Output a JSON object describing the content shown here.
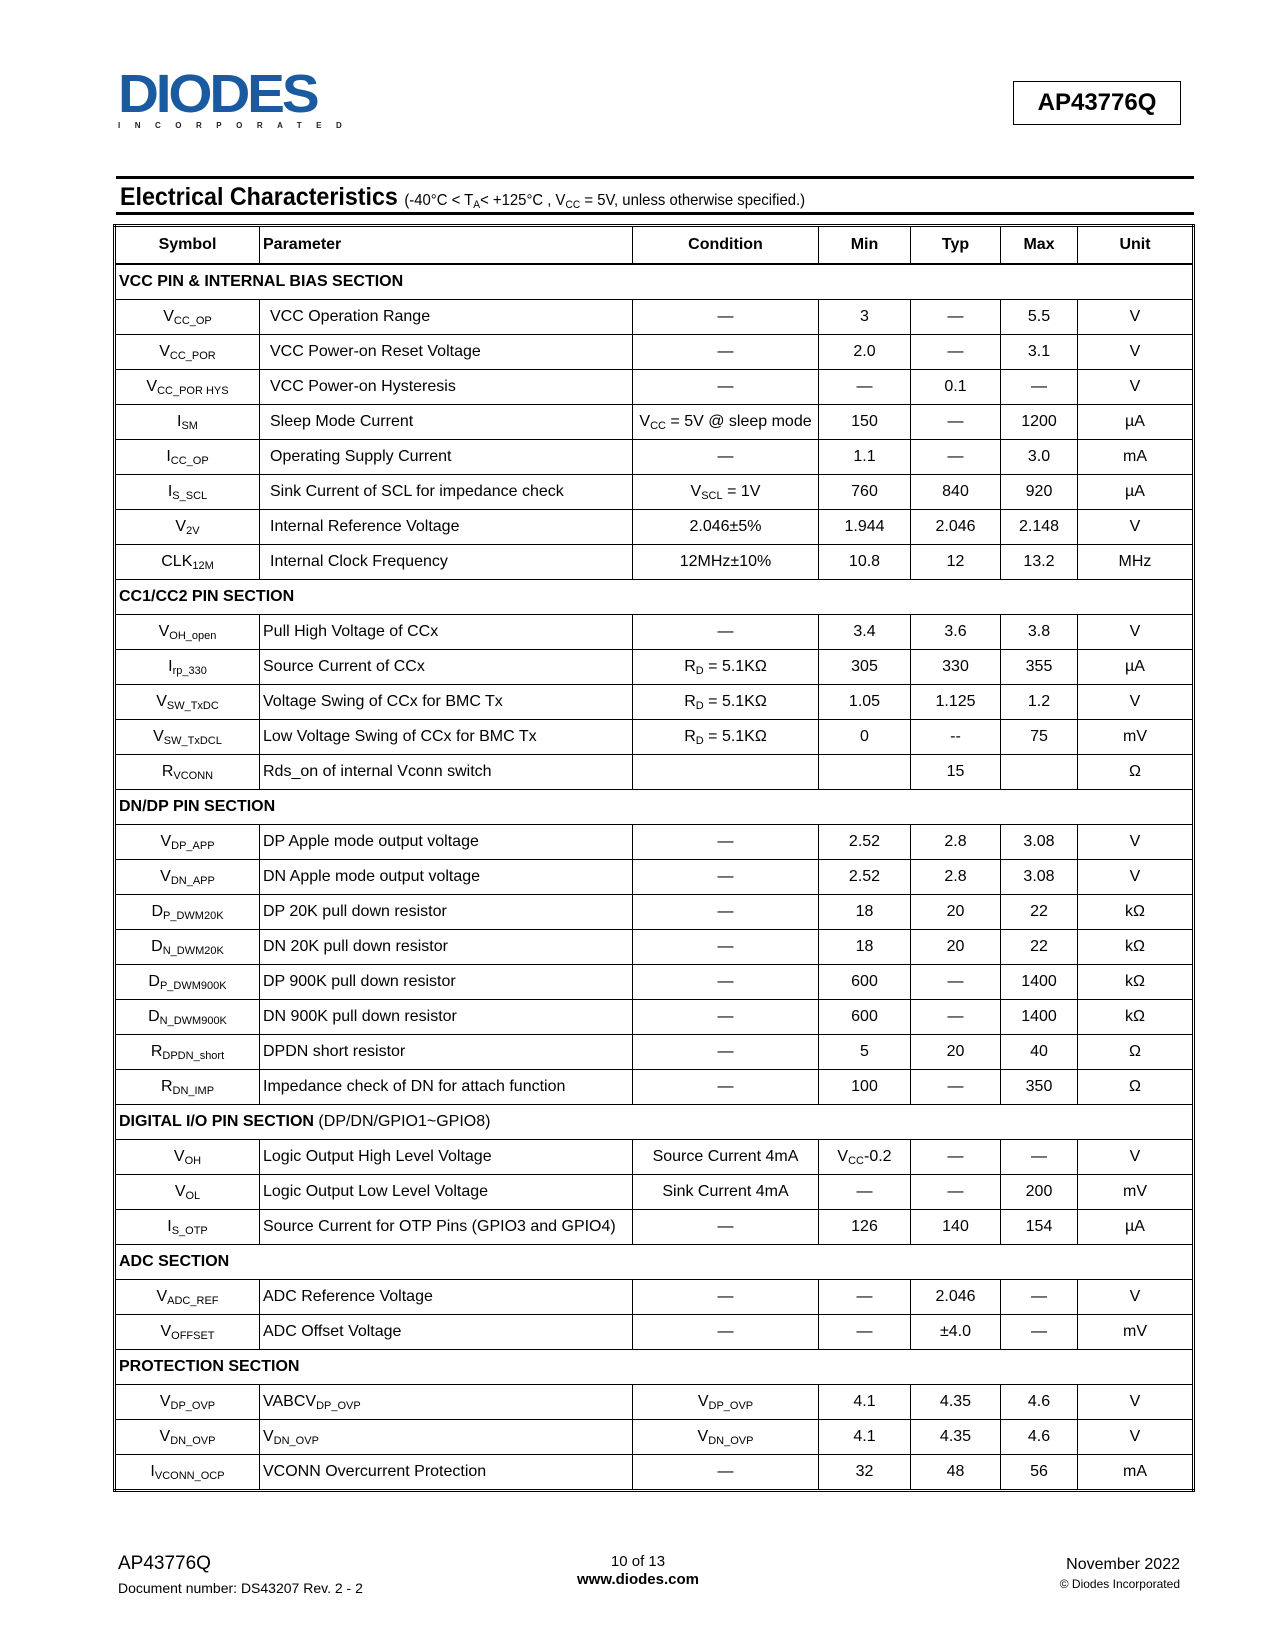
{
  "header": {
    "logo_text": "DIODES",
    "logo_sub": "INCORPORATED",
    "part_number": "AP43776Q"
  },
  "title": {
    "main": "Electrical Characteristics",
    "condition_pre": "(-40°C < T",
    "condition_sub1": "A",
    "condition_mid": "< +125°C , V",
    "condition_sub2": "CC",
    "condition_post": " = 5V, unless otherwise specified.)"
  },
  "table": {
    "columns": [
      "Symbol",
      "Parameter",
      "Condition",
      "Min",
      "Typ",
      "Max",
      "Unit"
    ],
    "sections": [
      {
        "name": "VCC PIN & INTERNAL BIAS SECTION",
        "rows": [
          [
            {
              "b": "V",
              "s": "CC_OP"
            },
            "VCC Operation Range",
            "—",
            "3",
            "—",
            "5.5",
            "V"
          ],
          [
            {
              "b": "V",
              "s": "CC_POR"
            },
            "VCC Power-on Reset Voltage",
            "—",
            "2.0",
            "—",
            "3.1",
            "V"
          ],
          [
            {
              "b": "V",
              "s": "CC_POR HYS"
            },
            "VCC Power-on Hysteresis",
            "—",
            "—",
            "0.1",
            "—",
            "V"
          ],
          [
            {
              "b": "I",
              "s": "SM"
            },
            "Sleep Mode Current",
            {
              "b": "V",
              "s": "CC",
              "a": " = 5V @ sleep mode"
            },
            "150",
            "—",
            "1200",
            "µA"
          ],
          [
            {
              "b": "I",
              "s": "CC_OP"
            },
            "Operating Supply Current",
            "—",
            "1.1",
            "—",
            "3.0",
            "mA"
          ],
          [
            {
              "b": "I",
              "s": "S_SCL"
            },
            "Sink Current of SCL for impedance check",
            {
              "b": "V",
              "s": "SCL",
              "a": " = 1V"
            },
            "760",
            "840",
            "920",
            "µA"
          ],
          [
            {
              "b": "V",
              "s": "2V"
            },
            "Internal Reference Voltage",
            "2.046±5%",
            "1.944",
            "2.046",
            "2.148",
            "V"
          ],
          [
            {
              "b": "CLK",
              "s": "12M"
            },
            "Internal Clock Frequency",
            "12MHz±10%",
            "10.8",
            "12",
            "13.2",
            "MHz"
          ]
        ]
      },
      {
        "name": "CC1/CC2 PIN SECTION",
        "rows": [
          [
            {
              "b": "V",
              "s": "OH_open"
            },
            "Pull High Voltage of CCx",
            "—",
            "3.4",
            "3.6",
            "3.8",
            "V"
          ],
          [
            {
              "b": "I",
              "s": "rp_330"
            },
            "Source Current of CCx",
            {
              "b": "R",
              "s": "D",
              "a": " = 5.1KΩ"
            },
            "305",
            "330",
            "355",
            "µA"
          ],
          [
            {
              "b": "V",
              "s": "SW_TxDC"
            },
            "Voltage Swing of CCx for BMC Tx",
            {
              "b": "R",
              "s": "D",
              "a": " = 5.1KΩ"
            },
            "1.05",
            "1.125",
            "1.2",
            "V"
          ],
          [
            {
              "b": "V",
              "s": "SW_TxDCL"
            },
            "Low Voltage Swing of CCx for BMC Tx",
            {
              "b": "R",
              "s": "D",
              "a": " = 5.1KΩ"
            },
            "0",
            "--",
            "75",
            "mV"
          ],
          [
            {
              "b": "R",
              "s": "VCONN"
            },
            "Rds_on of internal Vconn switch",
            "",
            "",
            "15",
            "",
            "Ω"
          ]
        ]
      },
      {
        "name": "DN/DP PIN SECTION",
        "rows": [
          [
            {
              "b": "V",
              "s": "DP_APP"
            },
            "DP Apple mode output voltage",
            "—",
            "2.52",
            "2.8",
            "3.08",
            "V"
          ],
          [
            {
              "b": "V",
              "s": "DN_APP"
            },
            "DN Apple mode output voltage",
            "—",
            "2.52",
            "2.8",
            "3.08",
            "V"
          ],
          [
            {
              "b": "D",
              "s": "P_DWM20K"
            },
            "DP 20K pull down resistor",
            "—",
            "18",
            "20",
            "22",
            "kΩ"
          ],
          [
            {
              "b": "D",
              "s": "N_DWM20K"
            },
            "DN 20K pull down resistor",
            "—",
            "18",
            "20",
            "22",
            "kΩ"
          ],
          [
            {
              "b": "D",
              "s": "P_DWM900K"
            },
            "DP 900K pull down resistor",
            "—",
            "600",
            "—",
            "1400",
            "kΩ"
          ],
          [
            {
              "b": "D",
              "s": "N_DWM900K"
            },
            "DN 900K pull down resistor",
            "—",
            "600",
            "—",
            "1400",
            "kΩ"
          ],
          [
            {
              "b": "R",
              "s": "DPDN_short"
            },
            "DPDN short resistor",
            "—",
            "5",
            "20",
            "40",
            "Ω"
          ],
          [
            {
              "b": "R",
              "s": "DN_IMP"
            },
            "Impedance check of DN for attach function",
            "—",
            "100",
            "—",
            "350",
            "Ω"
          ]
        ]
      },
      {
        "name": "DIGITAL I/O PIN SECTION",
        "name_note": " (DP/DN/GPIO1~GPIO8)",
        "rows": [
          [
            {
              "b": "V",
              "s": "OH"
            },
            "Logic Output High Level Voltage",
            "Source Current 4mA",
            {
              "b": "V",
              "s": "CC",
              "a": "-0.2"
            },
            "—",
            "—",
            "V"
          ],
          [
            {
              "b": "V",
              "s": "OL"
            },
            "Logic Output Low Level Voltage",
            "Sink Current 4mA",
            "—",
            "—",
            "200",
            "mV"
          ],
          [
            {
              "b": "I",
              "s": "S_OTP"
            },
            "Source Current for OTP Pins (GPIO3 and GPIO4)",
            "—",
            "126",
            "140",
            "154",
            "µA"
          ]
        ]
      },
      {
        "name": "ADC SECTION",
        "rows": [
          [
            {
              "b": "V",
              "s": "ADC_REF"
            },
            "ADC Reference Voltage",
            "—",
            "—",
            "2.046",
            "—",
            "V"
          ],
          [
            {
              "b": "V",
              "s": "OFFSET"
            },
            "ADC Offset Voltage",
            "—",
            "—",
            "±4.0",
            "—",
            "mV"
          ]
        ]
      },
      {
        "name": "PROTECTION SECTION",
        "rows": [
          [
            {
              "b": "V",
              "s": "DP_OVP"
            },
            {
              "b": "VABCV",
              "s": "DP_OVP"
            },
            {
              "b": "V",
              "s": "DP_OVP"
            },
            "4.1",
            "4.35",
            "4.6",
            "V"
          ],
          [
            {
              "b": "V",
              "s": "DN_OVP"
            },
            {
              "b": "V",
              "s": "DN_OVP"
            },
            {
              "b": "V",
              "s": "DN_OVP"
            },
            "4.1",
            "4.35",
            "4.6",
            "V"
          ],
          [
            {
              "b": "I",
              "s": "VCONN_OCP"
            },
            "VCONN Overcurrent Protection",
            "—",
            "32",
            "48",
            "56",
            "mA"
          ]
        ]
      }
    ]
  },
  "footer": {
    "part": "AP43776Q",
    "doc_number": "Document number: DS43207 Rev. 2 - 2",
    "page": "10 of 13",
    "website": "www.diodes.com",
    "date": "November 2022",
    "copyright": "© Diodes Incorporated"
  },
  "colors": {
    "logo_blue": "#1a5aa0"
  }
}
